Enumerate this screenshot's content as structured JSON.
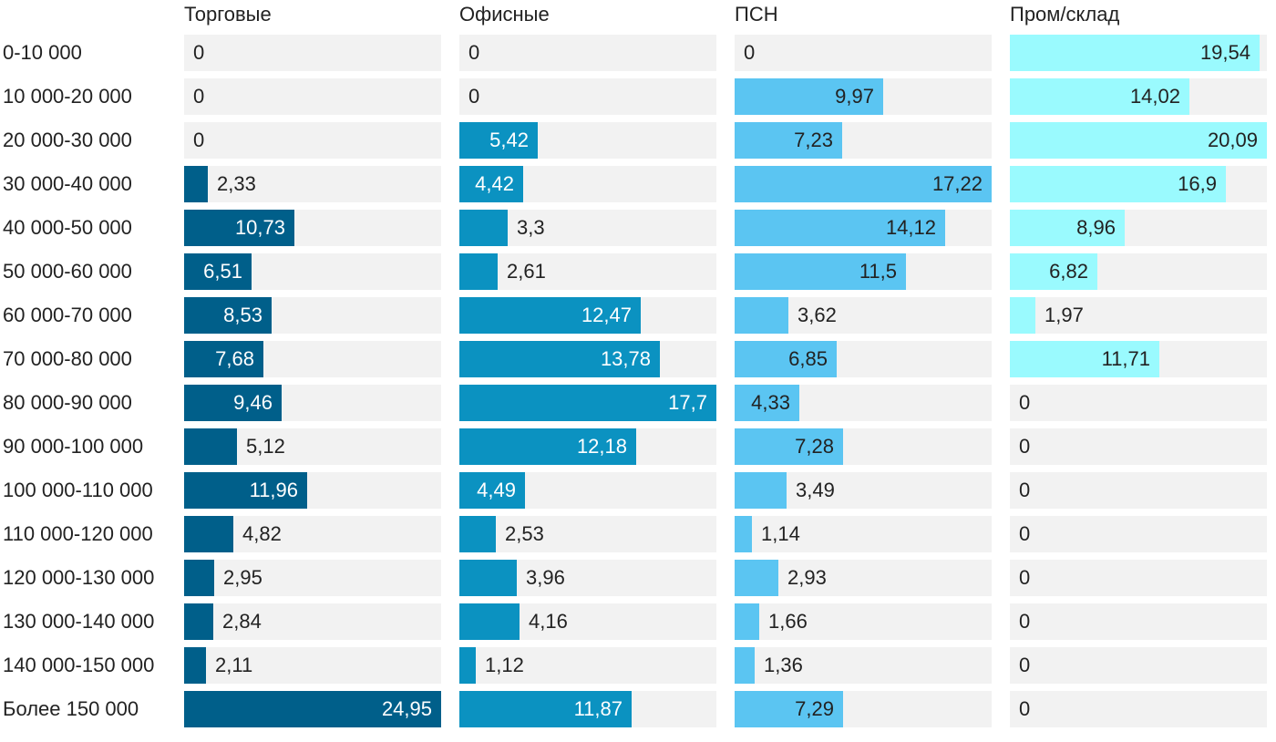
{
  "chart_data": {
    "type": "bar",
    "orientation": "horizontal",
    "layout": "small-multiples",
    "decimal_separator": ",",
    "categories": [
      "0-10 000",
      "10 000-20 000",
      "20 000-30 000",
      "30 000-40 000",
      "40 000-50 000",
      "50 000-60 000",
      "60 000-70 000",
      "70 000-80 000",
      "80 000-90 000",
      "90 000-100 000",
      "100 000-110 000",
      "110 000-120 000",
      "120 000-130 000",
      "130 000-140 000",
      "140 000-150 000",
      "Более 150 000"
    ],
    "series": [
      {
        "name": "Торговые",
        "color": "#005f8a",
        "label_color_inside": "#ffffff",
        "xlim": [
          0,
          24.95
        ],
        "values": [
          0,
          0,
          0,
          2.33,
          10.73,
          6.51,
          8.53,
          7.68,
          9.46,
          5.12,
          11.96,
          4.82,
          2.95,
          2.84,
          2.11,
          24.95
        ]
      },
      {
        "name": "Офисные",
        "color": "#0b92c1",
        "label_color_inside": "#ffffff",
        "xlim": [
          0,
          17.7
        ],
        "values": [
          0,
          0,
          5.42,
          4.42,
          3.3,
          2.61,
          12.47,
          13.78,
          17.7,
          12.18,
          4.49,
          2.53,
          3.96,
          4.16,
          1.12,
          11.87
        ]
      },
      {
        "name": "ПСН",
        "color": "#5bc5f2",
        "label_color_inside": "#222222",
        "xlim": [
          0,
          17.22
        ],
        "values": [
          0,
          9.97,
          7.23,
          17.22,
          14.12,
          11.5,
          3.62,
          6.85,
          4.33,
          7.28,
          3.49,
          1.14,
          2.93,
          1.66,
          1.36,
          7.29
        ]
      },
      {
        "name": "Пром/склад",
        "color": "#9afafe",
        "label_color_inside": "#222222",
        "xlim": [
          0,
          20.09
        ],
        "values": [
          19.54,
          14.02,
          20.09,
          16.9,
          8.96,
          6.82,
          1.97,
          11.71,
          0,
          0,
          0,
          0,
          0,
          0,
          0,
          0
        ]
      }
    ],
    "title": "",
    "xlabel": "",
    "ylabel": "",
    "grid": false,
    "legend": "none"
  }
}
